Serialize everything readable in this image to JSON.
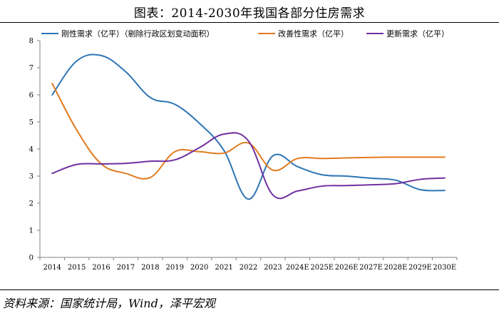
{
  "title": "图表：2014-2030年我国各部分住房需求",
  "source": "资料来源：国家统计局，Wind，泽平宏观",
  "chart_data": {
    "type": "line",
    "title": "图表：2014-2030年我国各部分住房需求",
    "xlabel": "",
    "ylabel": "",
    "ylim": [
      0,
      8
    ],
    "yticks": [
      "0",
      "1",
      "2",
      "3",
      "4",
      "5",
      "6",
      "7",
      "8"
    ],
    "categories": [
      "2014",
      "2015",
      "2016",
      "2017",
      "2018",
      "2019",
      "2020",
      "2021",
      "2022",
      "2023",
      "2024E",
      "2025E",
      "2026E",
      "2027E",
      "2028E",
      "2029E",
      "2030E"
    ],
    "legend_position": "top",
    "series": [
      {
        "name": "刚性需求（亿平）（剔除行政区划变动面积）",
        "color": "#2e75b6",
        "values": [
          6.0,
          7.25,
          7.45,
          6.85,
          5.9,
          5.65,
          4.95,
          3.95,
          2.15,
          3.75,
          3.35,
          3.05,
          3.0,
          2.92,
          2.85,
          2.5,
          2.47
        ]
      },
      {
        "name": "改善性需求（亿平）",
        "color": "#e07b1f",
        "values": [
          6.42,
          4.7,
          3.45,
          3.1,
          2.95,
          3.9,
          3.9,
          3.85,
          4.22,
          3.22,
          3.65,
          3.65,
          3.67,
          3.69,
          3.7,
          3.7,
          3.7
        ]
      },
      {
        "name": "更新需求（亿平）",
        "color": "#7030a0",
        "values": [
          3.1,
          3.43,
          3.45,
          3.47,
          3.55,
          3.6,
          4.05,
          4.55,
          4.3,
          2.3,
          2.45,
          2.63,
          2.65,
          2.68,
          2.72,
          2.88,
          2.93
        ]
      }
    ]
  }
}
